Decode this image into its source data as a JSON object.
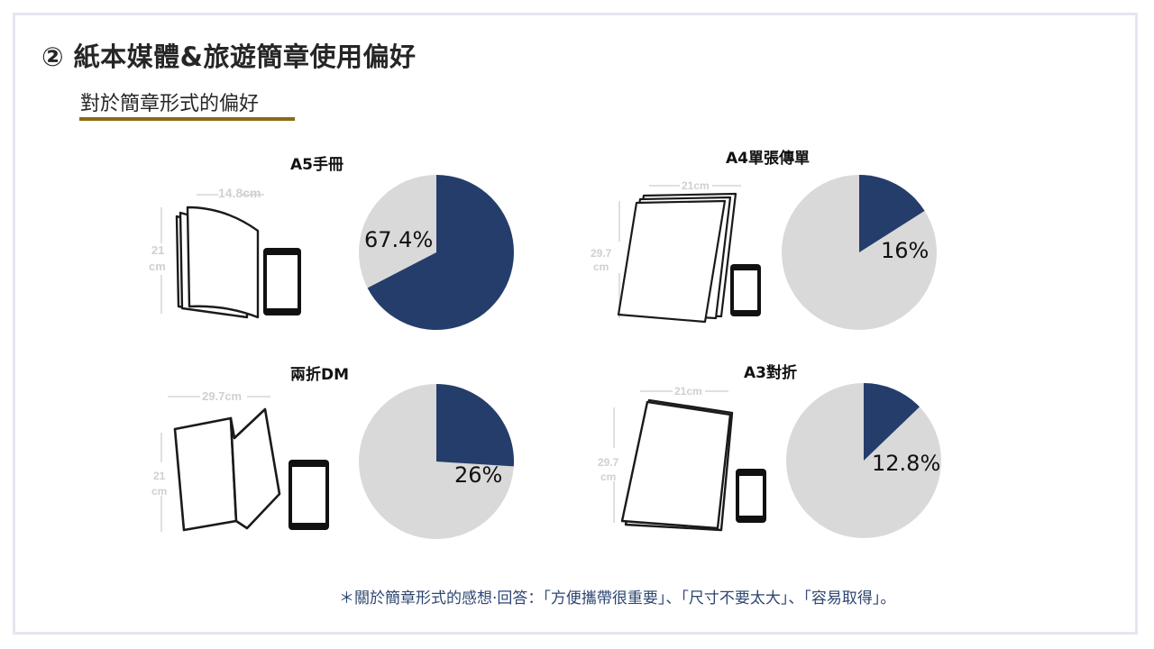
{
  "header": {
    "title": "② 紙本媒體&旅遊簡章使用偏好",
    "subtitle": "對於簡章形式的偏好"
  },
  "colors": {
    "primary": "#253d6a",
    "remainder": "#d9d9d9",
    "accent": "#8b6a17"
  },
  "chart_data": [
    {
      "type": "pie",
      "title": "A5手冊",
      "value": 67.4,
      "label": "67.4%",
      "size_labels": {
        "width": "14.8cm",
        "height_num": "21",
        "height_unit": "cm"
      }
    },
    {
      "type": "pie",
      "title": "A4單張傳單",
      "value": 16,
      "label": "16%",
      "size_labels": {
        "width": "21cm",
        "height_num": "29.7",
        "height_unit": "cm"
      }
    },
    {
      "type": "pie",
      "title": "兩折DM",
      "value": 26,
      "label": "26%",
      "size_labels": {
        "width": "29.7cm",
        "height_num": "21",
        "height_unit": "cm"
      }
    },
    {
      "type": "pie",
      "title": "A3對折",
      "value": 12.8,
      "label": "12.8%",
      "size_labels": {
        "width": "21cm",
        "height_num": "29.7",
        "height_unit": "cm"
      }
    }
  ],
  "footnote": "＊關於簡章形式的感想‧回答：「方便攜帶很重要」、「尺寸不要太大」、「容易取得」。"
}
